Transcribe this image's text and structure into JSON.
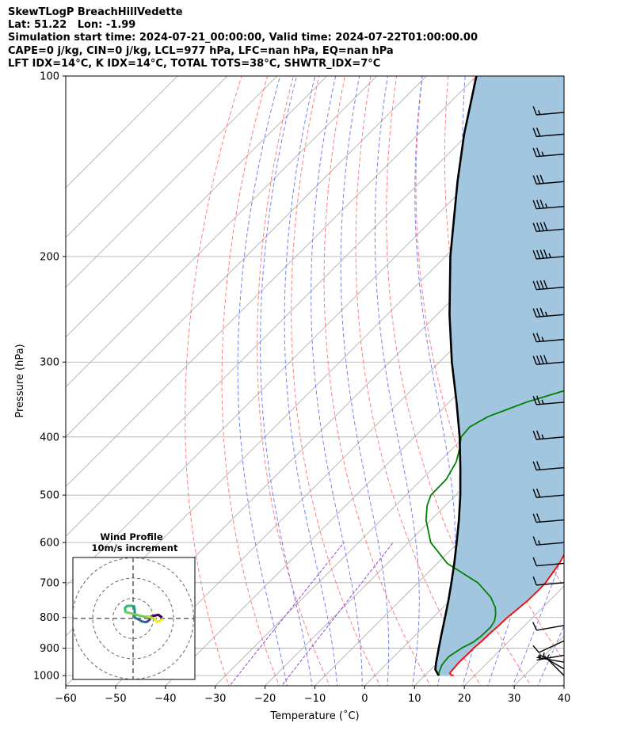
{
  "header": {
    "line1": "SkewTLogP BreachHillVedette",
    "line2": "Lat: 51.22   Lon: -1.99",
    "line3": "Simulation start time: 2024-07-21_00:00:00, Valid time: 2024-07-22T01:00:00.00",
    "line4": "CAPE=0 j/kg, CIN=0 j/kg, LCL=977 hPa, LFC=nan hPa, EQ=nan hPa",
    "line5": "LFT IDX=14°C, K IDX=14°C, TOTAL TOTS=38°C, SHWTR_IDX=7°C"
  },
  "chart_data": {
    "type": "skewt-logp",
    "xlabel": "Temperature (˚C)",
    "ylabel": "Pressure (hPa)",
    "xlim": [
      -60,
      40
    ],
    "ylim": [
      1040,
      100
    ],
    "yscale": "log",
    "grid": true,
    "x_ticks": [
      -60,
      -50,
      -40,
      -30,
      -20,
      -10,
      0,
      10,
      20,
      30,
      40
    ],
    "x_tick_labels": [
      "−60",
      "−50",
      "−40",
      "−30",
      "−20",
      "−10",
      "0",
      "10",
      "20",
      "30",
      "40"
    ],
    "y_ticks": [
      1000,
      900,
      800,
      700,
      600,
      500,
      400,
      300,
      200,
      100
    ],
    "y_tick_labels": [
      "1000",
      "900",
      "800",
      "700",
      "600",
      "500",
      "400",
      "300",
      "200",
      "100"
    ],
    "colors": {
      "temperature": "#ff0000",
      "dewpoint": "#008000",
      "parcel": "#000000",
      "shade": "#a3c6e0",
      "dry_adiabat": "#ff6666",
      "moist_adiabat": "#6677ee",
      "mixing_ratio": "#9944cc",
      "isotherm": "#aaaaaa"
    },
    "temperature_profile": [
      {
        "p": 1000,
        "t": 15.8
      },
      {
        "p": 998,
        "t": 15.2
      },
      {
        "p": 990,
        "t": 14.5
      },
      {
        "p": 950,
        "t": 14.2
      },
      {
        "p": 920,
        "t": 14.3
      },
      {
        "p": 900,
        "t": 14.3
      },
      {
        "p": 880,
        "t": 14.5
      },
      {
        "p": 850,
        "t": 14.6
      },
      {
        "p": 830,
        "t": 14.8
      },
      {
        "p": 800,
        "t": 14.9
      },
      {
        "p": 780,
        "t": 15.2
      },
      {
        "p": 750,
        "t": 15.6
      },
      {
        "p": 720,
        "t": 15.7
      },
      {
        "p": 700,
        "t": 15.6
      },
      {
        "p": 650,
        "t": 14.5
      },
      {
        "p": 600,
        "t": 12.6
      },
      {
        "p": 550,
        "t": 10.4
      },
      {
        "p": 500,
        "t": 7.4
      },
      {
        "p": 450,
        "t": 3.4
      },
      {
        "p": 400,
        "t": -1.6
      },
      {
        "p": 350,
        "t": -5.5
      },
      {
        "p": 320,
        "t": -8.7
      },
      {
        "p": 300,
        "t": -12.1
      },
      {
        "p": 280,
        "t": -15.7
      },
      {
        "p": 260,
        "t": -19.3
      },
      {
        "p": 240,
        "t": -22.5
      },
      {
        "p": 220,
        "t": -26.5
      },
      {
        "p": 205,
        "t": -30.0
      },
      {
        "p": 190,
        "t": -32.0
      },
      {
        "p": 170,
        "t": -34.5
      },
      {
        "p": 150,
        "t": -38.5
      },
      {
        "p": 145,
        "t": -39.7
      },
      {
        "p": 130,
        "t": -38.5
      },
      {
        "p": 115,
        "t": -37.5
      },
      {
        "p": 110,
        "t": -39.3
      },
      {
        "p": 105,
        "t": -40.5
      },
      {
        "p": 100,
        "t": -41.5
      }
    ],
    "dewpoint_profile": [
      {
        "p": 1000,
        "td": 12.8
      },
      {
        "p": 990,
        "td": 12.3
      },
      {
        "p": 960,
        "td": 11.3
      },
      {
        "p": 930,
        "td": 11.0
      },
      {
        "p": 900,
        "td": 11.9
      },
      {
        "p": 880,
        "td": 13.0
      },
      {
        "p": 860,
        "td": 13.4
      },
      {
        "p": 830,
        "td": 13.5
      },
      {
        "p": 810,
        "td": 13.0
      },
      {
        "p": 790,
        "td": 11.9
      },
      {
        "p": 770,
        "td": 10.5
      },
      {
        "p": 740,
        "td": 7.5
      },
      {
        "p": 700,
        "td": 2.0
      },
      {
        "p": 650,
        "td": -8.0
      },
      {
        "p": 600,
        "td": -15.5
      },
      {
        "p": 550,
        "td": -21.0
      },
      {
        "p": 520,
        "td": -23.7
      },
      {
        "p": 500,
        "td": -25.0
      },
      {
        "p": 470,
        "td": -25.1
      },
      {
        "p": 440,
        "td": -26.6
      },
      {
        "p": 420,
        "td": -28.4
      },
      {
        "p": 400,
        "td": -30.6
      },
      {
        "p": 385,
        "td": -30.9
      },
      {
        "p": 370,
        "td": -29.3
      },
      {
        "p": 350,
        "td": -24.5
      },
      {
        "p": 335,
        "td": -19.2
      },
      {
        "p": 320,
        "td": -19.6
      },
      {
        "p": 300,
        "td": -21.1
      },
      {
        "p": 280,
        "td": -24.8
      },
      {
        "p": 260,
        "td": -28.5
      },
      {
        "p": 240,
        "td": -32.7
      },
      {
        "p": 220,
        "td": -34.0
      },
      {
        "p": 205,
        "td": -35.0
      },
      {
        "p": 190,
        "td": -37.6
      },
      {
        "p": 175,
        "td": -39.0
      },
      {
        "p": 165,
        "td": -42.0
      },
      {
        "p": 155,
        "td": -48.0
      },
      {
        "p": 150,
        "td": -49.8
      },
      {
        "p": 140,
        "td": -48.3
      },
      {
        "p": 125,
        "td": -47.0
      },
      {
        "p": 110,
        "td": -46.0
      },
      {
        "p": 100,
        "td": -45.5
      }
    ],
    "parcel_profile": [
      {
        "p": 1000,
        "t": 12.8
      },
      {
        "p": 977,
        "t": 10.9
      },
      {
        "p": 950,
        "t": 9.6
      },
      {
        "p": 900,
        "t": 7.3
      },
      {
        "p": 850,
        "t": 4.9
      },
      {
        "p": 800,
        "t": 2.4
      },
      {
        "p": 750,
        "t": -0.3
      },
      {
        "p": 700,
        "t": -3.3
      },
      {
        "p": 650,
        "t": -6.6
      },
      {
        "p": 600,
        "t": -10.3
      },
      {
        "p": 550,
        "t": -14.4
      },
      {
        "p": 500,
        "t": -19.1
      },
      {
        "p": 450,
        "t": -24.6
      },
      {
        "p": 400,
        "t": -30.9
      },
      {
        "p": 350,
        "t": -38.5
      },
      {
        "p": 300,
        "t": -47.5
      },
      {
        "p": 250,
        "t": -57.5
      },
      {
        "p": 200,
        "t": -69.0
      },
      {
        "p": 150,
        "t": -82.6
      },
      {
        "p": 125,
        "t": -90.8
      },
      {
        "p": 100,
        "t": -100.0
      }
    ],
    "wind_barbs": [
      {
        "p": 1000,
        "direction": 225,
        "speed_kt": 5
      },
      {
        "p": 975,
        "direction": 240,
        "speed_kt": 5
      },
      {
        "p": 950,
        "direction": 260,
        "speed_kt": 5
      },
      {
        "p": 925,
        "direction": 280,
        "speed_kt": 5
      },
      {
        "p": 875,
        "direction": 295,
        "speed_kt": 10
      },
      {
        "p": 825,
        "direction": 280,
        "speed_kt": 10
      },
      {
        "p": 700,
        "direction": 275,
        "speed_kt": 10
      },
      {
        "p": 650,
        "direction": 275,
        "speed_kt": 10
      },
      {
        "p": 600,
        "direction": 275,
        "speed_kt": 15
      },
      {
        "p": 550,
        "direction": 275,
        "speed_kt": 20
      },
      {
        "p": 500,
        "direction": 275,
        "speed_kt": 20
      },
      {
        "p": 450,
        "direction": 275,
        "speed_kt": 20
      },
      {
        "p": 400,
        "direction": 275,
        "speed_kt": 25
      },
      {
        "p": 350,
        "direction": 275,
        "speed_kt": 25
      },
      {
        "p": 300,
        "direction": 275,
        "speed_kt": 40
      },
      {
        "p": 275,
        "direction": 275,
        "speed_kt": 25
      },
      {
        "p": 250,
        "direction": 275,
        "speed_kt": 35
      },
      {
        "p": 225,
        "direction": 275,
        "speed_kt": 40
      },
      {
        "p": 200,
        "direction": 275,
        "speed_kt": 45
      },
      {
        "p": 180,
        "direction": 275,
        "speed_kt": 40
      },
      {
        "p": 165,
        "direction": 275,
        "speed_kt": 35
      },
      {
        "p": 150,
        "direction": 275,
        "speed_kt": 30
      },
      {
        "p": 135,
        "direction": 275,
        "speed_kt": 25
      },
      {
        "p": 125,
        "direction": 275,
        "speed_kt": 20
      },
      {
        "p": 115,
        "direction": 275,
        "speed_kt": 15
      }
    ],
    "hodograph": {
      "title_line1": "Wind Profile",
      "title_line2": "10m/s increment",
      "ring_spacing_ms": 10,
      "rings": 3,
      "colormap": "viridis",
      "points": [
        {
          "u": 14.0,
          "v": 0.8
        },
        {
          "u": 12.5,
          "v": 1.8
        },
        {
          "u": 11.0,
          "v": 1.5
        },
        {
          "u": 9.0,
          "v": 1.0
        },
        {
          "u": 8.5,
          "v": 0.2
        },
        {
          "u": 8.2,
          "v": -0.6
        },
        {
          "u": 7.0,
          "v": -1.6
        },
        {
          "u": 5.8,
          "v": -1.8
        },
        {
          "u": 4.2,
          "v": -1.4
        },
        {
          "u": 3.0,
          "v": -0.6
        },
        {
          "u": 0.8,
          "v": 0.4
        },
        {
          "u": 0.8,
          "v": 2.6
        },
        {
          "u": 0.8,
          "v": 4.2
        },
        {
          "u": 0.5,
          "v": 6.0
        },
        {
          "u": -1.0,
          "v": 6.3
        },
        {
          "u": -3.0,
          "v": 6.2
        },
        {
          "u": -4.0,
          "v": 5.2
        },
        {
          "u": -3.8,
          "v": 3.2
        },
        {
          "u": 5.6,
          "v": 0.8
        },
        {
          "u": 7.2,
          "v": 1.0
        },
        {
          "u": 9.4,
          "v": 0.3
        },
        {
          "u": 11.0,
          "v": -0.5
        },
        {
          "u": 12.0,
          "v": -1.8
        },
        {
          "u": 14.5,
          "v": -0.5
        }
      ]
    }
  }
}
